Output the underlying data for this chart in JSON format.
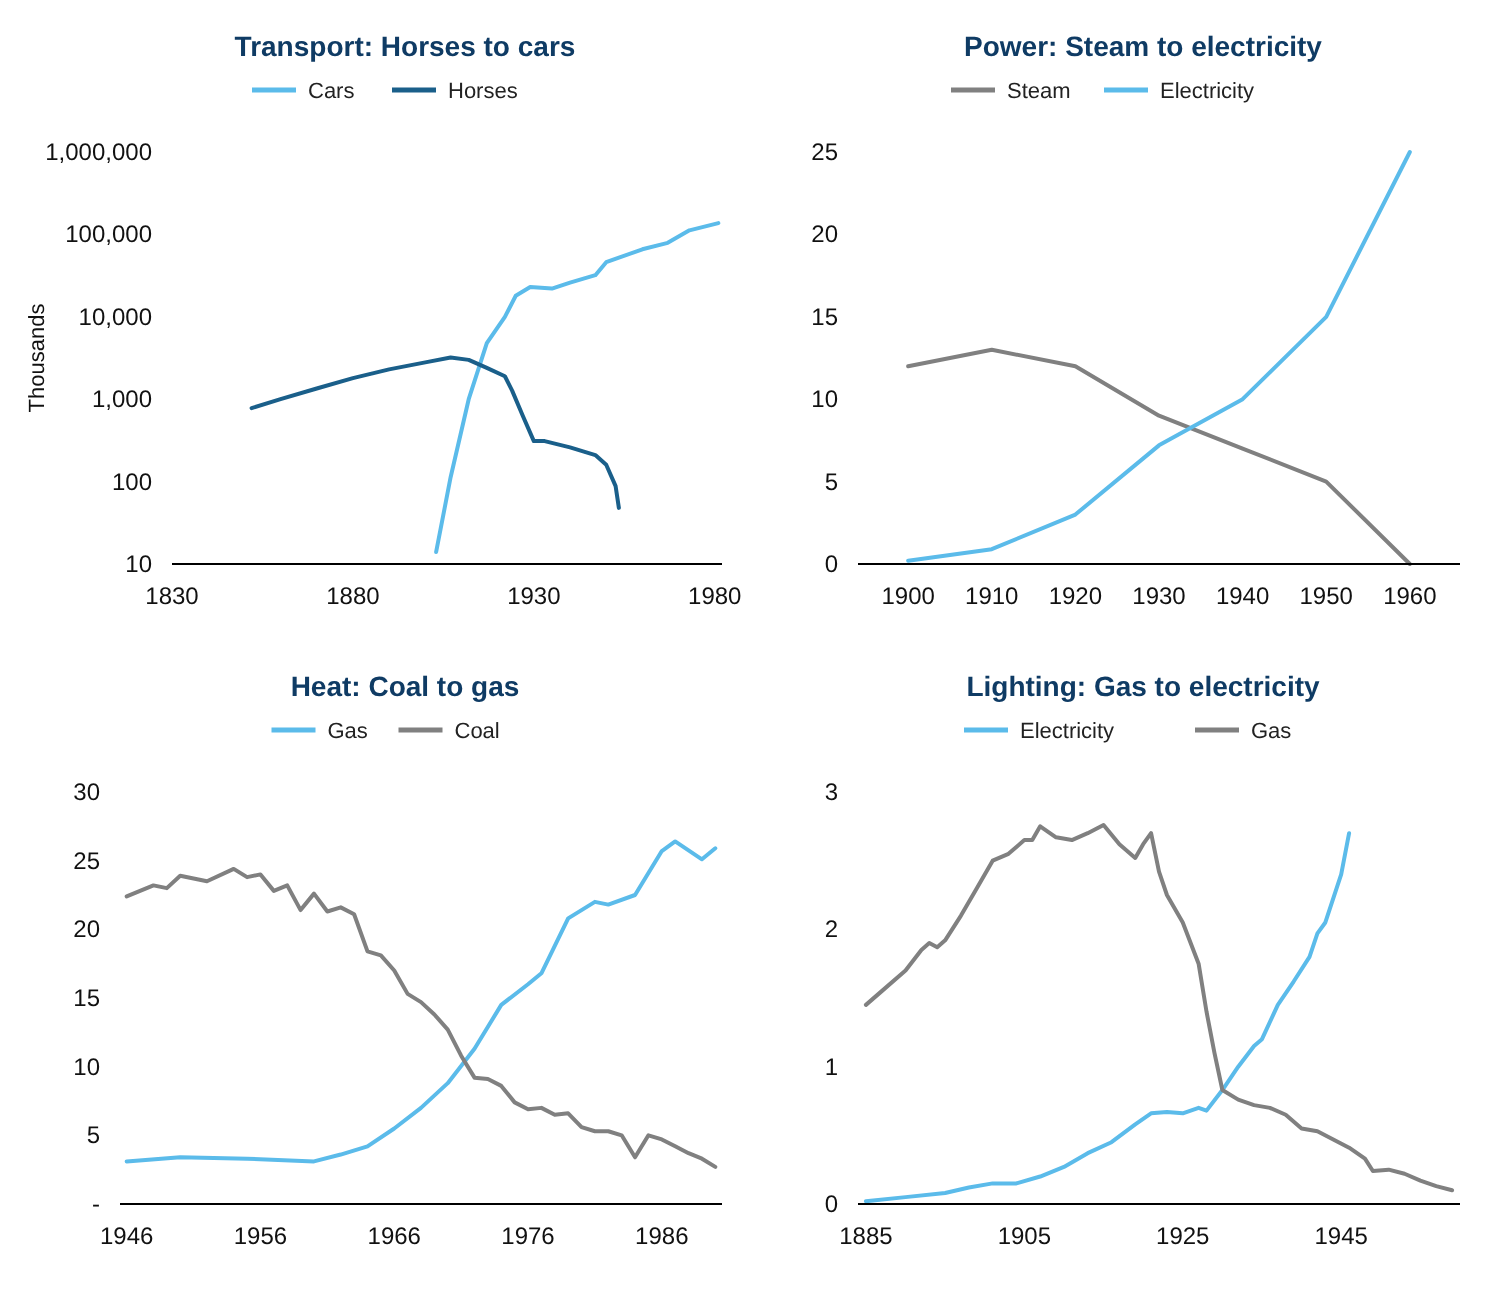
{
  "chart_data": [
    {
      "type": "line",
      "title": "Transport: Horses to cars",
      "ylabel": "Thousands",
      "log": "y",
      "legend": "top",
      "xlim": [
        1830,
        1982
      ],
      "xticks": [
        1830,
        1880,
        1930,
        1980
      ],
      "ylim": [
        10,
        1000000
      ],
      "yticks": [
        10,
        100,
        {
          "value": 1000,
          "label": "1,000"
        },
        {
          "value": 10000,
          "label": "10,000"
        },
        {
          "value": 100000,
          "label": "100,000"
        },
        {
          "value": 1000000,
          "label": "1,000,000"
        }
      ],
      "series": [
        {
          "name": "Cars",
          "color": "#5bbbea",
          "x": [
            1903,
            1907,
            1912,
            1917,
            1922,
            1925,
            1929,
            1935,
            1940,
            1947,
            1950,
            1960,
            1967,
            1973,
            1981
          ],
          "values": [
            14,
            113,
            1000,
            4800,
            10000,
            18000,
            23000,
            22000,
            26000,
            32000,
            46000,
            66000,
            79000,
            112000,
            137000
          ]
        },
        {
          "name": "Horses",
          "color": "#1a5f8a",
          "x": [
            1852,
            1860,
            1870,
            1880,
            1890,
            1900,
            1907,
            1912,
            1917,
            1922,
            1924,
            1927,
            1930,
            1933,
            1940,
            1947,
            1950,
            1952.6,
            1953.5
          ],
          "values": [
            780,
            1000,
            1350,
            1800,
            2300,
            2800,
            3200,
            3000,
            2400,
            1900,
            1270,
            620,
            310,
            310,
            260,
            210,
            160,
            88,
            48
          ]
        }
      ]
    },
    {
      "type": "line",
      "title": "Power: Steam to electricity",
      "legend": "top",
      "xlim": [
        1894,
        1966
      ],
      "xticks": [
        1900,
        1910,
        1920,
        1930,
        1940,
        1950,
        1960
      ],
      "ylim": [
        0,
        25
      ],
      "yticks": [
        0,
        5,
        10,
        15,
        20,
        25
      ],
      "series": [
        {
          "name": "Steam",
          "color": "#808080",
          "x": [
            1900,
            1910,
            1920,
            1930,
            1940,
            1950,
            1960
          ],
          "values": [
            12,
            13,
            12,
            9,
            7,
            5,
            0
          ]
        },
        {
          "name": "Electricity",
          "color": "#5bbbea",
          "x": [
            1900,
            1910,
            1920,
            1930,
            1940,
            1950,
            1960
          ],
          "values": [
            0.2,
            0.9,
            3,
            7.2,
            10,
            15,
            25
          ]
        }
      ]
    },
    {
      "type": "line",
      "title": "Heat: Coal to gas",
      "legend": "top",
      "xlim": [
        1945.5,
        1990.5
      ],
      "xticks": [
        1946,
        1956,
        1966,
        1976,
        1986
      ],
      "ylim": [
        0,
        30
      ],
      "yticks": [
        {
          "value": 0,
          "label": "-"
        },
        5,
        10,
        15,
        20,
        25,
        30
      ],
      "series": [
        {
          "name": "Gas",
          "color": "#5bbbea",
          "x": [
            1946,
            1950,
            1955,
            1960,
            1962,
            1964,
            1966,
            1968,
            1970,
            1972,
            1974,
            1976,
            1977,
            1979,
            1981,
            1982,
            1984,
            1986,
            1987,
            1989,
            1990
          ],
          "values": [
            3.1,
            3.4,
            3.3,
            3.1,
            3.6,
            4.2,
            5.5,
            7,
            8.8,
            11.3,
            14.5,
            16,
            16.8,
            20.8,
            22,
            21.8,
            22.5,
            25.7,
            26.4,
            25.1,
            25.9
          ]
        },
        {
          "name": "Coal",
          "color": "#808080",
          "x": [
            1946,
            1948,
            1949,
            1950,
            1952,
            1954,
            1955,
            1956,
            1957,
            1958,
            1959,
            1960,
            1961,
            1962,
            1963,
            1964,
            1965,
            1966,
            1967,
            1968,
            1969,
            1970,
            1971,
            1972,
            1973,
            1974,
            1975,
            1976,
            1977,
            1978,
            1979,
            1980,
            1981,
            1982,
            1983,
            1984,
            1985,
            1986,
            1987,
            1988,
            1989,
            1990
          ],
          "values": [
            22.4,
            23.2,
            23,
            23.9,
            23.5,
            24.4,
            23.8,
            24,
            22.8,
            23.2,
            21.4,
            22.6,
            21.3,
            21.6,
            21.1,
            18.4,
            18.1,
            17,
            15.3,
            14.7,
            13.8,
            12.7,
            10.8,
            9.2,
            9.1,
            8.6,
            7.4,
            6.9,
            7,
            6.5,
            6.6,
            5.6,
            5.3,
            5.3,
            5,
            3.4,
            5,
            4.7,
            4.2,
            3.7,
            3.3,
            2.7
          ]
        }
      ]
    },
    {
      "type": "line",
      "title": "Lighting: Gas to electricity",
      "legend": "top",
      "xlim": [
        1884,
        1960
      ],
      "xticks": [
        1885,
        1905,
        1925,
        1945
      ],
      "ylim": [
        0,
        3
      ],
      "yticks": [
        0,
        1,
        2,
        3
      ],
      "series": [
        {
          "name": "Electricity",
          "color": "#5bbbea",
          "x": [
            1885,
            1890,
            1895,
            1898,
            1901,
            1904,
            1907,
            1910,
            1913,
            1916,
            1919,
            1921,
            1923,
            1925,
            1927,
            1928,
            1930,
            1932,
            1934,
            1935,
            1937,
            1939,
            1941,
            1942,
            1943,
            1945,
            1946
          ],
          "values": [
            0.02,
            0.05,
            0.08,
            0.12,
            0.15,
            0.15,
            0.2,
            0.27,
            0.37,
            0.45,
            0.58,
            0.66,
            0.67,
            0.66,
            0.7,
            0.68,
            0.83,
            1,
            1.15,
            1.2,
            1.45,
            1.62,
            1.8,
            1.97,
            2.05,
            2.4,
            2.7
          ]
        },
        {
          "name": "Gas",
          "color": "#808080",
          "x": [
            1885,
            1887,
            1890,
            1892,
            1893,
            1894,
            1895,
            1897,
            1899,
            1901,
            1903,
            1905,
            1906,
            1907,
            1909,
            1911,
            1913,
            1915,
            1917,
            1919,
            1920,
            1921,
            1922,
            1923,
            1925,
            1927,
            1928,
            1929,
            1930,
            1932,
            1934,
            1936,
            1938,
            1940,
            1942,
            1944,
            1946,
            1948,
            1949,
            1951,
            1953,
            1955,
            1957,
            1959
          ],
          "values": [
            1.45,
            1.55,
            1.7,
            1.85,
            1.9,
            1.87,
            1.92,
            2.1,
            2.3,
            2.5,
            2.55,
            2.65,
            2.65,
            2.75,
            2.67,
            2.65,
            2.7,
            2.76,
            2.62,
            2.52,
            2.62,
            2.7,
            2.42,
            2.25,
            2.05,
            1.75,
            1.4,
            1.1,
            0.83,
            0.76,
            0.72,
            0.7,
            0.65,
            0.55,
            0.53,
            0.47,
            0.41,
            0.33,
            0.24,
            0.25,
            0.22,
            0.17,
            0.13,
            0.1
          ]
        }
      ]
    }
  ]
}
